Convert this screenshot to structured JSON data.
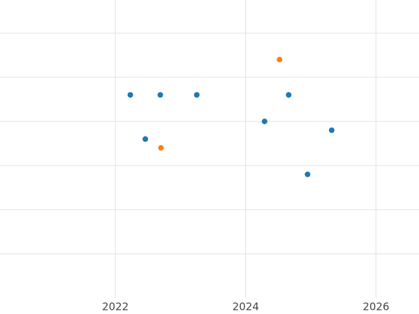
{
  "chart_data": {
    "type": "scatter",
    "series": [
      {
        "color": "#1f77b4",
        "x": [
          2022.23,
          2022.69,
          2023.25,
          2022.46,
          2024.29,
          2024.66,
          2025.32,
          2024.95
        ],
        "values": [
          4.6,
          4.6,
          4.6,
          3.6,
          4.0,
          4.6,
          3.8,
          2.8
        ]
      },
      {
        "color": "#ff7f0e",
        "x": [
          2024.52,
          2022.7
        ],
        "values": [
          5.4,
          3.4
        ]
      }
    ],
    "xlim": [
      2020.23,
      2026.66
    ],
    "xticks": [
      2022,
      2024,
      2026
    ],
    "ylim": [
      0,
      6.75
    ],
    "yticks": [
      1,
      2,
      3,
      4,
      5,
      6
    ],
    "ytick_labels": false,
    "grid": true
  }
}
